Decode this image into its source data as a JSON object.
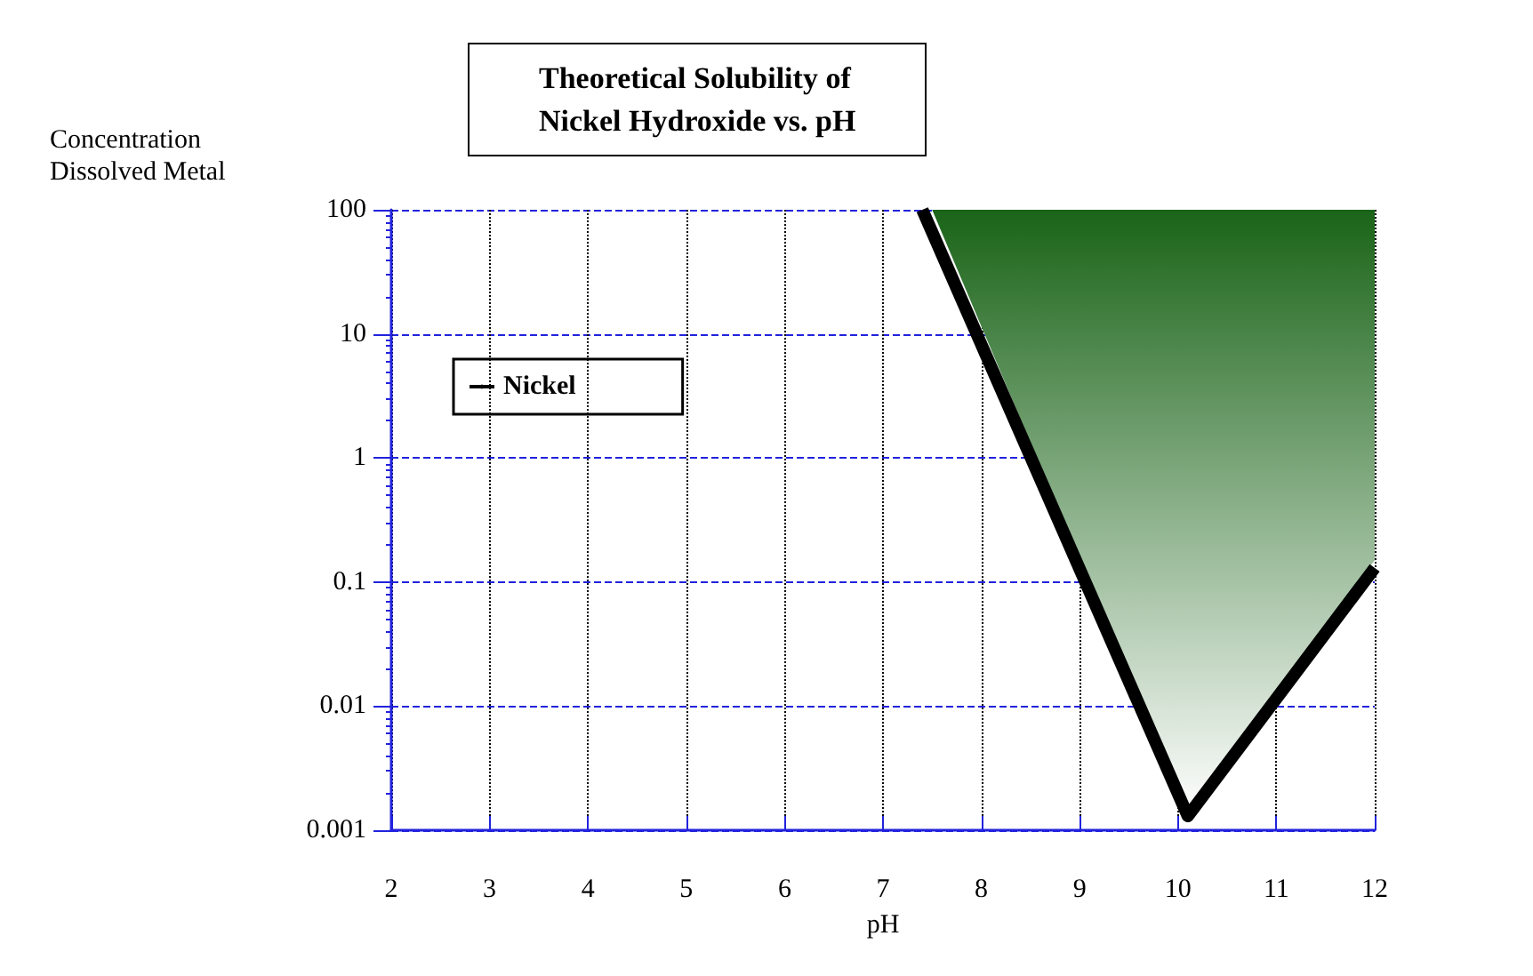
{
  "chart_data": {
    "type": "line",
    "title": "Theoretical Solubility of\nNickel Hydroxide vs. pH",
    "xlabel": "pH",
    "ylabel": "Concentration\nDissolved Metal",
    "x": [
      7.4,
      10.1,
      12
    ],
    "series": [
      {
        "type": "area",
        "color": "#1a6418",
        "x": [
          7.5,
          10.1,
          12,
          12
        ],
        "values": [
          100,
          0.0013,
          0.15,
          100
        ]
      },
      {
        "name": "Nickel",
        "color": "#000000",
        "values": [
          100,
          0.0013,
          0.13
        ]
      }
    ],
    "xlim": [
      2,
      12
    ],
    "xticks": [
      2,
      3,
      4,
      5,
      6,
      7,
      8,
      9,
      10,
      11,
      12
    ],
    "ylim": [
      0.001,
      100
    ],
    "yticks": [
      0.001,
      0.01,
      0.1,
      1,
      10,
      100
    ],
    "log": "y",
    "grid": true,
    "legend": "top left",
    "marker": "none",
    "line_style": "solid"
  }
}
